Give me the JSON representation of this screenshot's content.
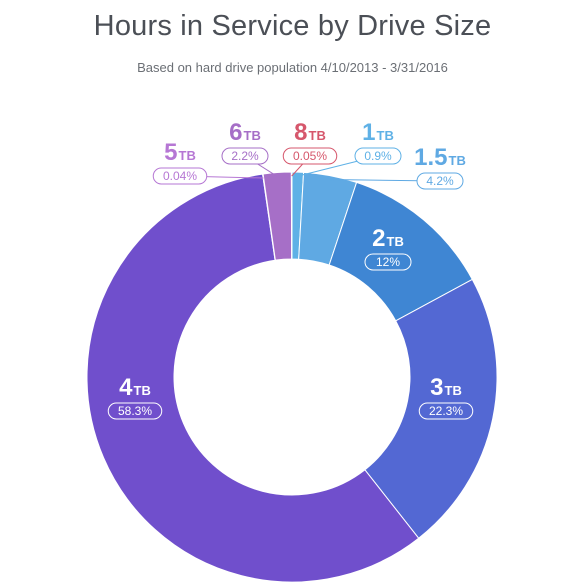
{
  "chart_data": {
    "type": "pie",
    "variant": "donut",
    "title": "Hours in Service by Drive Size",
    "subtitle": "Based on hard drive population 4/10/2013 - 3/31/2016",
    "legend": "none",
    "slices": [
      {
        "size": "1",
        "unit": "TB",
        "label": "0.9%",
        "value": 0.9,
        "color": "#5fb1e6",
        "text_color": "#5fb1e6"
      },
      {
        "size": "1.5",
        "unit": "TB",
        "label": "4.2%",
        "value": 4.2,
        "color": "#5fa9e3",
        "text_color": "#5fa9e3"
      },
      {
        "size": "2",
        "unit": "TB",
        "label": "12%",
        "value": 12.0,
        "color": "#3f86d3",
        "text_color": "#ffffff"
      },
      {
        "size": "3",
        "unit": "TB",
        "label": "22.3%",
        "value": 22.3,
        "color": "#5368d3",
        "text_color": "#ffffff"
      },
      {
        "size": "4",
        "unit": "TB",
        "label": "58.3%",
        "value": 58.3,
        "color": "#704fcc",
        "text_color": "#ffffff"
      },
      {
        "size": "5",
        "unit": "TB",
        "label": "0.04%",
        "value": 0.04,
        "color": "#b677d4",
        "text_color": "#b677d4"
      },
      {
        "size": "6",
        "unit": "TB",
        "label": "2.2%",
        "value": 2.2,
        "color": "#a66fc7",
        "text_color": "#a66fc7"
      },
      {
        "size": "8",
        "unit": "TB",
        "label": "0.05%",
        "value": 0.05,
        "color": "#d6576c",
        "text_color": "#d6576c"
      }
    ]
  }
}
